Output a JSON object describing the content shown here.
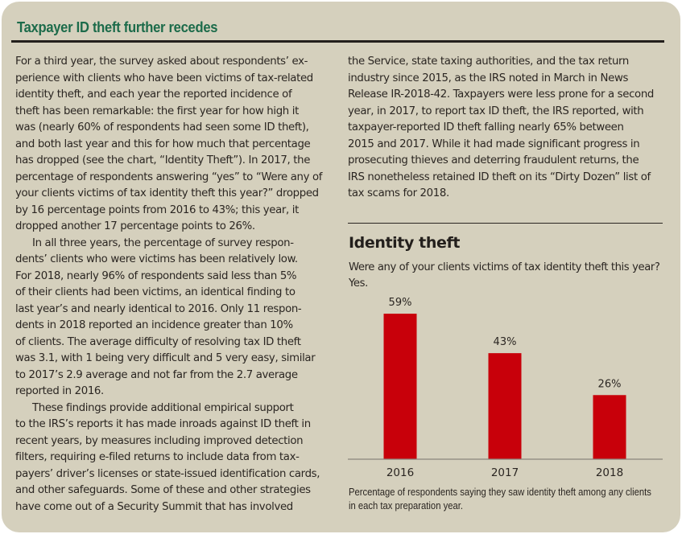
{
  "article": {
    "headline": "Taxpayer ID theft further recedes",
    "left_column": [
      {
        "indent": false,
        "lines": [
          "For a third year, the survey asked about respondents’ ex-",
          "perience with clients who have been victims of tax-related",
          "identity theft, and each year the reported incidence of",
          "theft has been remarkable: the first year for how high it",
          "was (nearly 60% of respondents had seen some ID theft),",
          "and both last year and this for how much that percentage",
          "has dropped (see the chart, “Identity Theft”). In 2017, the",
          "percentage of respondents answering “yes” to “Were any of",
          "your clients victims of tax identity theft this year?” dropped",
          "by 16 percentage points from 2016 to 43%; this year, it",
          "dropped another 17 percentage points to 26%."
        ]
      },
      {
        "indent": true,
        "lines": [
          "In all three years, the percentage of survey respon-",
          "dents’ clients who were victims has been relatively low.",
          "For 2018, nearly 96% of respondents said less than 5%",
          "of their clients had been victims, an identical finding to",
          "last year’s and nearly identical to 2016. Only 11 respon-",
          "dents in 2018 reported an incidence greater than 10%",
          "of clients. The average difficulty of resolving tax ID theft",
          "was 3.1, with 1 being very difficult and 5 very easy, similar",
          "to 2017’s 2.9 average and not far from the 2.7 average",
          "reported in 2016."
        ]
      },
      {
        "indent": true,
        "lines": [
          "These findings provide additional empirical support",
          "to the IRS’s reports it has made inroads against ID theft in",
          "recent years, by measures including improved detection",
          "filters, requiring e-filed returns to include data from tax-",
          "payers’ driver’s licenses or state-issued identification cards,",
          "and other safeguards. Some of these and other strategies",
          "have come out of a Security Summit that has involved"
        ]
      }
    ],
    "right_column": [
      {
        "indent": false,
        "lines": [
          "the Service, state taxing authorities, and the tax return",
          "industry since 2015, as the IRS noted in March in News",
          "Release IR-2018-42. Taxpayers were less prone for a second",
          "year, in 2017, to report tax ID theft, the IRS reported, with",
          "taxpayer-reported ID theft falling nearly 65% between",
          "2015 and 2017. While it had made significant progress in",
          "prosecuting thieves and deterring fraudulent returns, the",
          "IRS nonetheless retained ID theft on its “Dirty Dozen” list of",
          "tax scams for 2018."
        ]
      }
    ]
  },
  "colors": {
    "headline": "#1c6b4a",
    "panel_background": "#d5d0bd",
    "bar": "#c8000a",
    "text": "#2b2622"
  },
  "chart_data": {
    "type": "bar",
    "title": "Identity theft",
    "subtitle_lines": [
      "Were any of your clients victims of tax identity theft this year?",
      "Yes."
    ],
    "categories": [
      "2016",
      "2017",
      "2018"
    ],
    "values": [
      59,
      43,
      26
    ],
    "data_labels": [
      "59%",
      "43%",
      "26%"
    ],
    "xlabel": "",
    "ylabel": "",
    "ylim": [
      0,
      60
    ],
    "grid": false,
    "legend": "none",
    "caption_lines": [
      "Percentage of respondents saying they saw identity theft among any clients",
      "in each tax preparation year."
    ]
  }
}
